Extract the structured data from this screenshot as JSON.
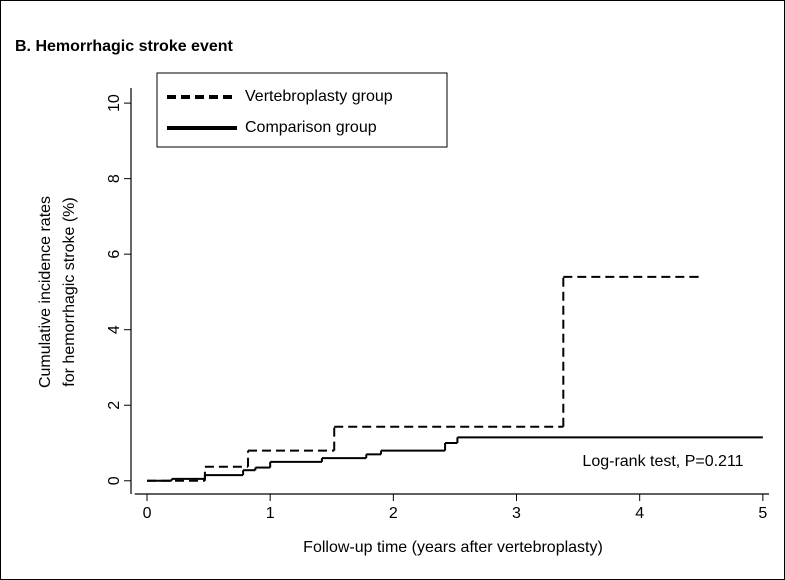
{
  "chart_data": {
    "type": "line",
    "step": true,
    "title": "B. Hemorrhagic stroke event",
    "ylabel": [
      "Cumulative incidence rates",
      "for hemorrhagic stroke (%)"
    ],
    "xlabel": "Follow-up time (years after vertebroplasty)",
    "annotation": "Log-rank test, P=0.211",
    "xlim": [
      -0.1,
      5.05
    ],
    "xticks": [
      0,
      1,
      2,
      3,
      4,
      5
    ],
    "ylim": [
      -0.35,
      10.4
    ],
    "yticks": [
      0,
      2,
      4,
      6,
      8,
      10
    ],
    "grid": false,
    "legend": "upper left",
    "series": [
      {
        "name": "Vertebroplasty group",
        "color": "#000000",
        "dash": true,
        "x": [
          0,
          0.47,
          0.82,
          1.52,
          3.38,
          4.48
        ],
        "values": [
          0,
          0.37,
          0.8,
          1.43,
          5.4,
          5.4
        ]
      },
      {
        "name": "Comparison group",
        "color": "#000000",
        "dash": false,
        "x": [
          0,
          0.2,
          0.47,
          0.78,
          0.88,
          1.0,
          1.42,
          1.78,
          1.9,
          2.42,
          2.52,
          5.0
        ],
        "values": [
          0,
          0.05,
          0.15,
          0.28,
          0.35,
          0.5,
          0.6,
          0.7,
          0.8,
          1.0,
          1.15,
          1.15
        ]
      }
    ]
  }
}
